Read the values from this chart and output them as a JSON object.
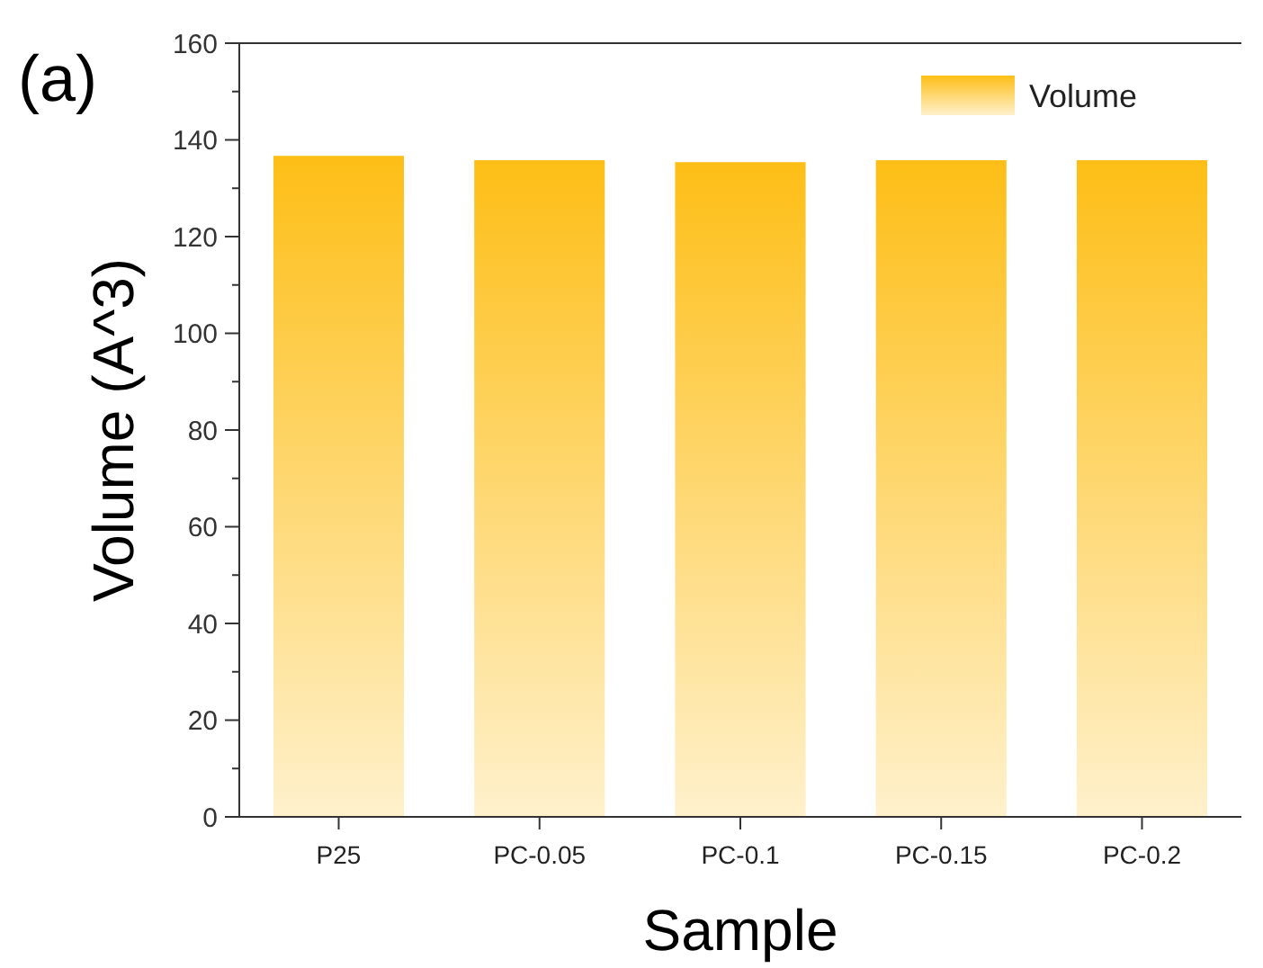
{
  "chart_data": {
    "type": "bar",
    "categories": [
      "P25",
      "PC-0.05",
      "PC-0.1",
      "PC-0.15",
      "PC-0.2"
    ],
    "series": [
      {
        "name": "Volume",
        "color": "#fdbe16",
        "values": [
          136.7,
          135.8,
          135.4,
          135.8,
          135.8
        ]
      }
    ],
    "xlabel": "Sample",
    "ylabel": "Volume (A^3)",
    "ylim": [
      0,
      160
    ],
    "yticks": [
      0,
      {
        "value": 10,
        "label": null
      },
      20,
      {
        "value": 30,
        "label": null
      },
      40,
      {
        "value": 50,
        "label": null
      },
      60,
      {
        "value": 70,
        "label": null
      },
      80,
      {
        "value": 90,
        "label": null
      },
      100,
      {
        "value": 110,
        "label": null
      },
      120,
      {
        "value": 130,
        "label": null
      },
      140,
      {
        "value": 150,
        "label": null
      },
      160
    ],
    "annotations": [
      "(a)"
    ],
    "legend": "top right",
    "grid": false
  }
}
